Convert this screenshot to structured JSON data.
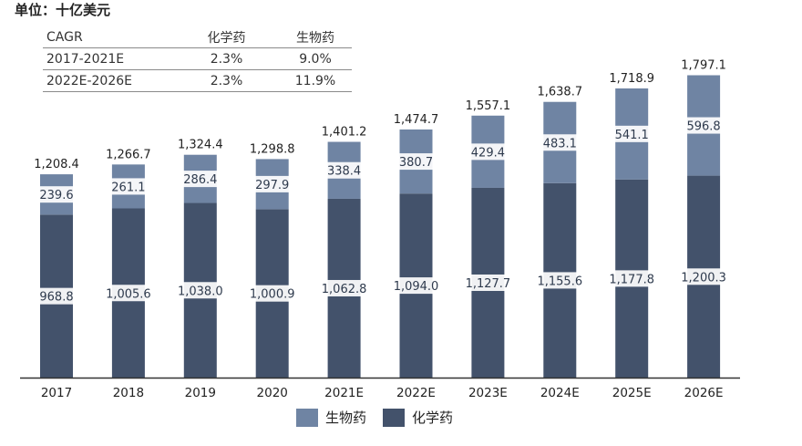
{
  "unit_label": "单位：十亿美元",
  "cagr_table": {
    "headers": [
      "CAGR",
      "化学药",
      "生物药"
    ],
    "rows": [
      [
        "2017-2021E",
        "2.3%",
        "9.0%"
      ],
      [
        "2022E-2026E",
        "2.3%",
        "11.9%"
      ]
    ]
  },
  "colors": {
    "chemical": "#43526b",
    "bio": "#6f84a3",
    "axis": "#333333"
  },
  "chart_data": {
    "type": "bar",
    "stacked": true,
    "categories": [
      "2017",
      "2018",
      "2019",
      "2020",
      "2021E",
      "2022E",
      "2023E",
      "2024E",
      "2025E",
      "2026E"
    ],
    "series": [
      {
        "name": "化学药",
        "values": [
          968.8,
          1005.6,
          1038.0,
          1000.9,
          1062.8,
          1094.0,
          1127.7,
          1155.6,
          1177.8,
          1200.3
        ],
        "labels": [
          "968.8",
          "1,005.6",
          "1,038.0",
          "1,000.9",
          "1,062.8",
          "1,094.0",
          "1,127.7",
          "1,155.6",
          "1,177.8",
          "1,200.3"
        ]
      },
      {
        "name": "生物药",
        "values": [
          239.6,
          261.1,
          286.4,
          297.9,
          338.4,
          380.7,
          429.4,
          483.1,
          541.1,
          596.8
        ],
        "labels": [
          "239.6",
          "261.1",
          "286.4",
          "297.9",
          "338.4",
          "380.7",
          "429.4",
          "483.1",
          "541.1",
          "596.8"
        ]
      }
    ],
    "totals": [
      1208.4,
      1266.7,
      1324.4,
      1298.8,
      1401.2,
      1474.7,
      1557.1,
      1638.7,
      1718.9,
      1797.1
    ],
    "total_labels": [
      "1,208.4",
      "1,266.7",
      "1,324.4",
      "1,298.8",
      "1,401.2",
      "1,474.7",
      "1,557.1",
      "1,638.7",
      "1,718.9",
      "1,797.1"
    ],
    "legend": [
      "生物药",
      "化学药"
    ],
    "legend_position": "bottom",
    "grid": false,
    "ylim": [
      0,
      1800
    ]
  }
}
